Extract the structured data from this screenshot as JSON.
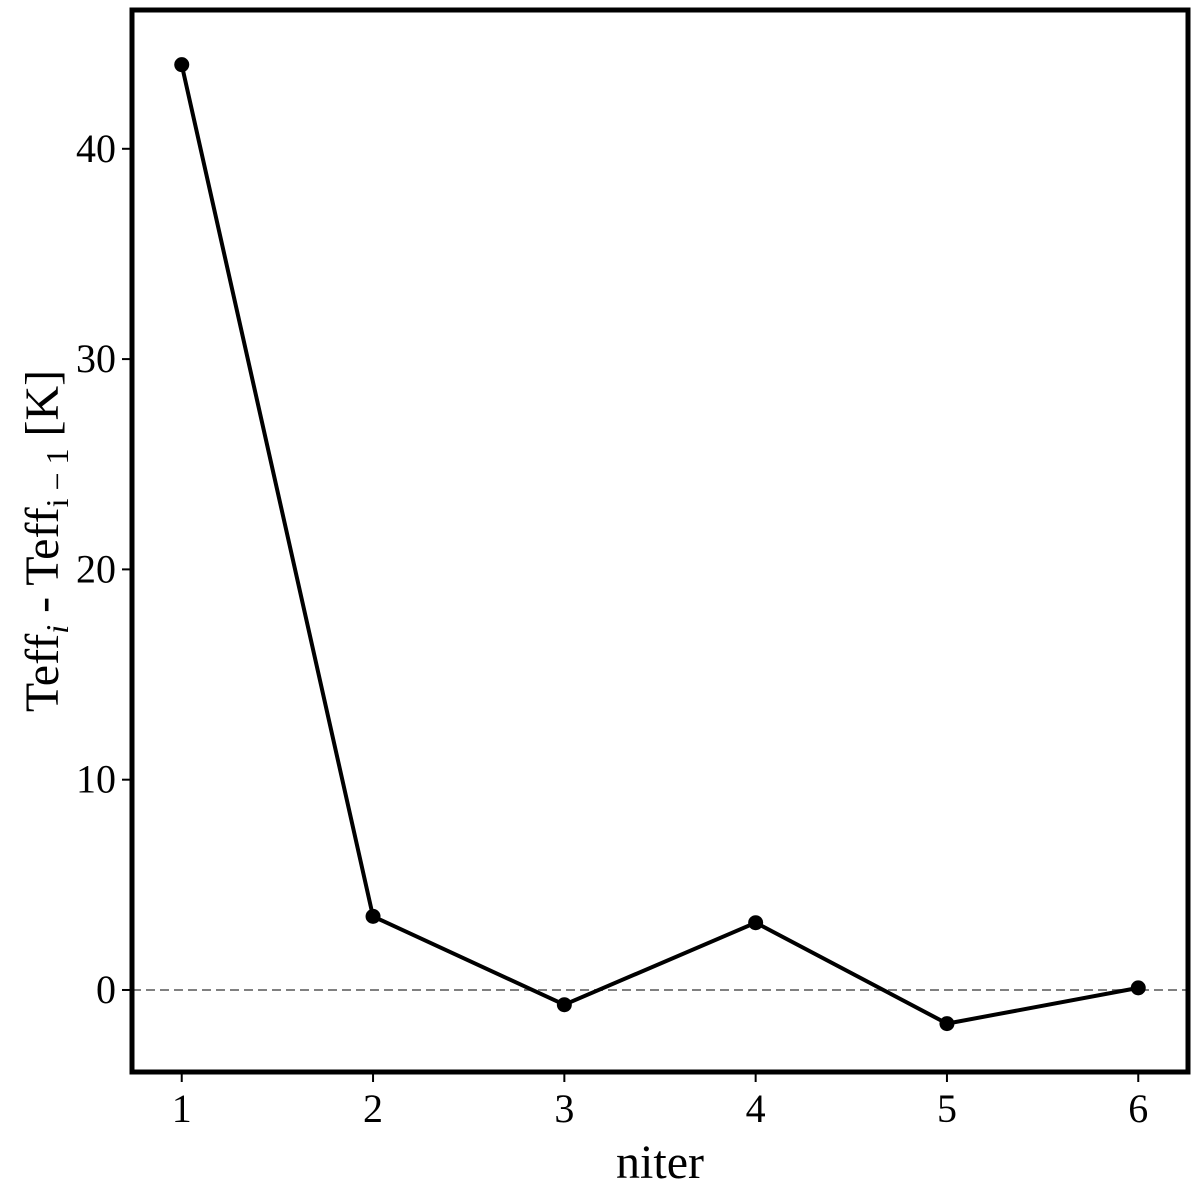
{
  "chart_data": {
    "type": "line",
    "title": "",
    "xlabel": "niter",
    "ylabel": {
      "text": "Teff",
      "sub1": "i",
      "middle": " - Teff",
      "sub2": "i − 1",
      "unit": " [K]"
    },
    "x": [
      1,
      2,
      3,
      4,
      5,
      6
    ],
    "series": [
      {
        "values": [
          44.0,
          3.5,
          -0.7,
          3.2,
          -1.6,
          0.1
        ],
        "color": "#000000"
      }
    ],
    "xlim": [
      0.74,
      6.26
    ],
    "ylim": [
      -3.9,
      46.6
    ],
    "xticks": [
      1,
      2,
      3,
      4,
      5,
      6
    ],
    "yticks": [
      0,
      10,
      20,
      30,
      40
    ],
    "reference_line": {
      "y": 0,
      "style": "dashed",
      "color": "#808080"
    },
    "grid": false,
    "legend": "none"
  }
}
